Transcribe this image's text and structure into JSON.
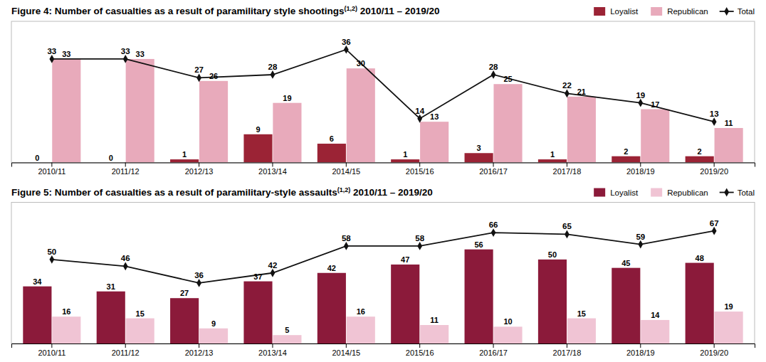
{
  "chart_data": [
    {
      "type": "bar",
      "title": "Figure 4: Number of casualties as a result of paramilitary style shootings",
      "annotations": [
        "(1,2)",
        " 2010/11 – 2019/20"
      ],
      "categories": [
        "2010/11",
        "2011/12",
        "2012/13",
        "2013/14",
        "2014/15",
        "2015/16",
        "2016/17",
        "2017/18",
        "2018/19",
        "2019/20"
      ],
      "series": [
        {
          "name": "Loyalist",
          "color": "#9B2335",
          "values": [
            0,
            0,
            1,
            9,
            6,
            1,
            3,
            1,
            2,
            2
          ]
        },
        {
          "name": "Republican",
          "color": "#E8AABB",
          "values": [
            33,
            33,
            26,
            19,
            30,
            13,
            25,
            21,
            17,
            11
          ]
        },
        {
          "name": "Total",
          "type": "line",
          "marker": "diamond",
          "color": "#111111",
          "values": [
            33,
            33,
            27,
            28,
            36,
            14,
            28,
            22,
            19,
            13
          ]
        }
      ],
      "ylim": [
        0,
        45
      ],
      "tick_labels": "x",
      "grid": false,
      "legend": "top right",
      "data_labels": true
    },
    {
      "type": "bar",
      "title": "Figure 5: Number of casualties as a result of paramilitary-style assaults",
      "annotations": [
        "(1,2)",
        " 2010/11 – 2019/20"
      ],
      "categories": [
        "2010/11",
        "2011/12",
        "2012/13",
        "2013/14",
        "2014/15",
        "2015/16",
        "2016/17",
        "2017/18",
        "2018/19",
        "2019/20"
      ],
      "series": [
        {
          "name": "Loyalist",
          "color": "#8B1A3A",
          "values": [
            34,
            31,
            27,
            37,
            42,
            47,
            56,
            50,
            45,
            48
          ]
        },
        {
          "name": "Republican",
          "color": "#F0C4D4",
          "values": [
            16,
            15,
            9,
            5,
            16,
            11,
            10,
            15,
            14,
            19
          ]
        },
        {
          "name": "Total",
          "type": "line",
          "marker": "diamond",
          "color": "#111111",
          "values": [
            50,
            46,
            36,
            42,
            58,
            58,
            66,
            65,
            59,
            67
          ]
        }
      ],
      "ylim": [
        0,
        84
      ],
      "tick_labels": "x",
      "grid": false,
      "legend": "top right",
      "data_labels": true
    }
  ]
}
